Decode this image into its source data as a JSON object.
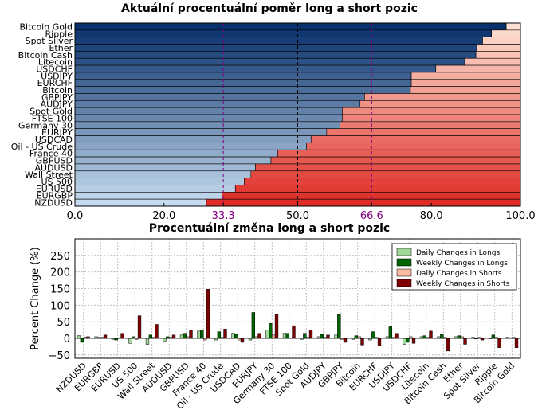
{
  "chart_data": [
    {
      "type": "bar",
      "orientation": "horizontal",
      "stacked": true,
      "title": "Aktuální procentuální poměr long a short pozic",
      "categories": [
        "Bitcoin Gold",
        "Ripple",
        "Spot Silver",
        "Ether",
        "Bitcoin Cash",
        "Litecoin",
        "USDCHF",
        "USDJPY",
        "EURCHF",
        "Bitcoin",
        "GBPJPY",
        "AUDJPY",
        "Spot Gold",
        "FTSE 100",
        "Germany 30",
        "EURJPY",
        "USDCAD",
        "Oil - US Crude",
        "France 40",
        "GBPUSD",
        "AUDUSD",
        "Wall Street",
        "US 500",
        "EURUSD",
        "EURGBP",
        "NZDUSD"
      ],
      "series": [
        {
          "values": [
            96.8,
            93.5,
            91.5,
            90.2,
            90.0,
            87.5,
            81.0,
            75.5,
            75.5,
            75.3,
            65.0,
            64.0,
            60.0,
            60.0,
            59.5,
            56.5,
            53.0,
            52.0,
            45.5,
            44.0,
            40.5,
            39.5,
            38.0,
            36.0,
            33.0,
            29.5
          ]
        },
        {
          "values": [
            3.2,
            6.5,
            8.5,
            9.8,
            10.0,
            12.5,
            19.0,
            24.5,
            24.5,
            24.7,
            35.0,
            36.0,
            40.0,
            40.0,
            40.5,
            43.5,
            47.0,
            48.0,
            54.5,
            56.0,
            59.5,
            60.5,
            62.0,
            64.0,
            67.0,
            70.5
          ]
        }
      ],
      "xlim": [
        0,
        100
      ],
      "xticks": [
        "0.0",
        "20.0",
        "33.3",
        "50.0",
        "66.6",
        "80.0",
        "100.0"
      ],
      "reference_lines": [
        33.3,
        50.0,
        66.6
      ]
    },
    {
      "type": "bar",
      "title": "Procentuální změna long a short pozic",
      "ylabel": "Percent Change (%)",
      "categories": [
        "NZDUSD",
        "EURGBP",
        "EURUSD",
        "US 500",
        "Wall Street",
        "AUDUSD",
        "GBPUSD",
        "France 40",
        "Oil - US Crude",
        "USDCAD",
        "EURJPY",
        "Germany 30",
        "FTSE 100",
        "Spot Gold",
        "AUDJPY",
        "GBPJPY",
        "Bitcoin",
        "EURCHF",
        "USDJPY",
        "USDCHF",
        "Litecoin",
        "Bitcoin Cash",
        "Ether",
        "Spot Silver",
        "Ripple",
        "Bitcoin Gold"
      ],
      "series": [
        {
          "name": "Daily Changes in Longs",
          "values": [
            8,
            5,
            -3,
            -15,
            -18,
            -8,
            10,
            22,
            -5,
            15,
            -5,
            25,
            15,
            -3,
            5,
            10,
            -3,
            -5,
            5,
            -18,
            5,
            5,
            5,
            3,
            0,
            3
          ]
        },
        {
          "name": "Weekly Changes in Longs",
          "values": [
            -12,
            3,
            -5,
            5,
            10,
            5,
            15,
            25,
            20,
            12,
            78,
            45,
            15,
            15,
            12,
            72,
            8,
            20,
            35,
            -12,
            8,
            12,
            8,
            -2,
            10,
            2
          ]
        },
        {
          "name": "Daily Changes in Shorts",
          "values": [
            3,
            3,
            2,
            -3,
            3,
            3,
            5,
            -5,
            3,
            -5,
            5,
            10,
            2,
            3,
            3,
            -3,
            5,
            3,
            3,
            5,
            3,
            3,
            5,
            3,
            3,
            3
          ]
        },
        {
          "name": "Weekly Changes in Shorts",
          "values": [
            5,
            10,
            15,
            68,
            42,
            10,
            25,
            148,
            28,
            -12,
            15,
            72,
            38,
            25,
            10,
            -12,
            -20,
            -22,
            15,
            -15,
            22,
            -38,
            -18,
            -5,
            -28,
            -28
          ]
        }
      ],
      "yticks": [
        "250",
        "200",
        "150",
        "100",
        "50",
        "0",
        "−50"
      ],
      "ylim": [
        -60,
        300
      ],
      "grid": true,
      "legend_position": "top-right",
      "colors": {
        "daily_longs": "#a1d99b",
        "weekly_longs": "#006400",
        "daily_shorts": "#fcbba1",
        "weekly_shorts": "#7f0000"
      }
    }
  ]
}
